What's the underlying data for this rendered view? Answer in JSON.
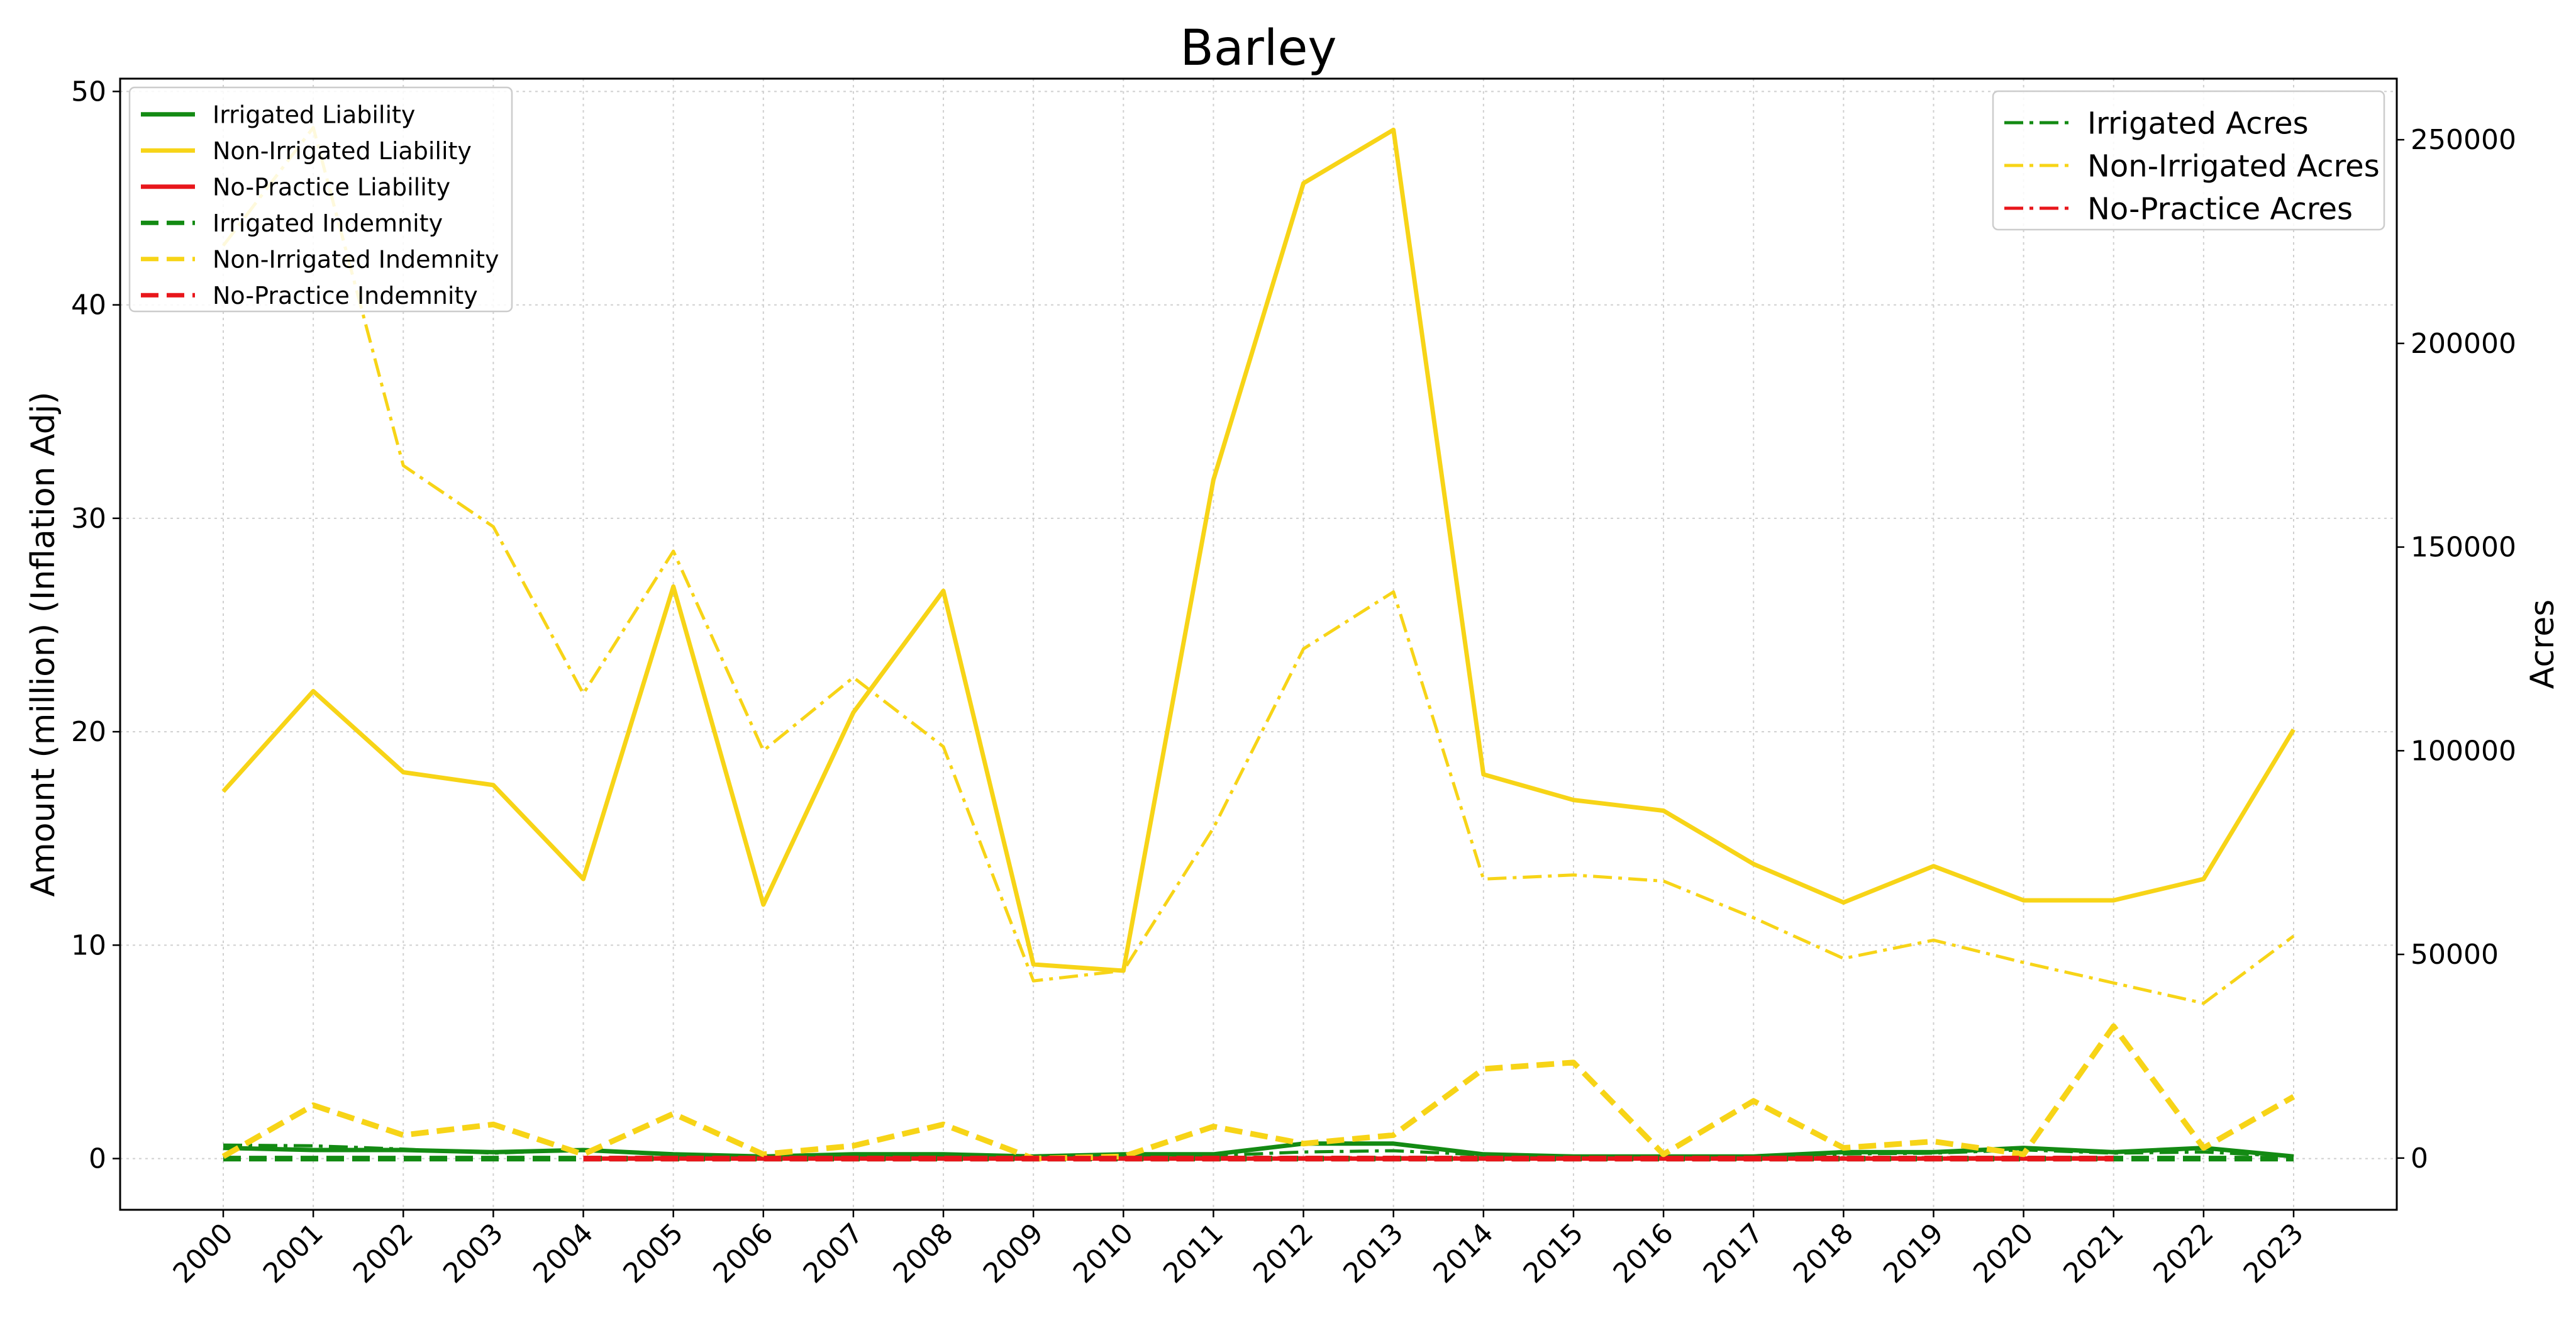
{
  "chart_data": {
    "type": "line",
    "title": "Barley",
    "ylabel_left": "Amount (million) (Inflation Adj)",
    "ylabel_right": "Acres",
    "x": [
      "2000",
      "2001",
      "2002",
      "2003",
      "2004",
      "2005",
      "2006",
      "2007",
      "2008",
      "2009",
      "2010",
      "2011",
      "2012",
      "2013",
      "2014",
      "2015",
      "2016",
      "2017",
      "2018",
      "2019",
      "2020",
      "2021",
      "2022",
      "2023"
    ],
    "ylim_left": [
      -2.4,
      50.6
    ],
    "ylim_right": [
      -12700,
      265000
    ],
    "yticks_left": [
      0,
      10,
      20,
      30,
      40,
      50
    ],
    "yticks_right": [
      0,
      50000,
      100000,
      150000,
      200000,
      250000
    ],
    "grid": true,
    "legend_left_position": "top-left",
    "legend_right_position": "top-right",
    "colors": {
      "irrigated": "#138a13",
      "non_irrigated": "#f7d417",
      "no_practice": "#e8161b"
    },
    "series_left": [
      {
        "name": "Irrigated Liability",
        "color": "#138a13",
        "dash": "solid",
        "values": [
          0.5,
          0.4,
          0.4,
          0.3,
          0.4,
          0.2,
          0.1,
          0.2,
          0.2,
          0.1,
          0.2,
          0.2,
          0.7,
          0.7,
          0.2,
          0.1,
          0.1,
          0.1,
          0.3,
          0.3,
          0.5,
          0.3,
          0.5,
          0.1
        ]
      },
      {
        "name": "Non-Irrigated Liability",
        "color": "#f7d417",
        "dash": "solid",
        "values": [
          17.2,
          21.9,
          18.1,
          17.5,
          13.1,
          26.8,
          11.9,
          20.9,
          26.6,
          9.1,
          8.8,
          31.8,
          45.7,
          48.2,
          18.0,
          16.8,
          16.3,
          13.8,
          12.0,
          13.7,
          12.1,
          12.1,
          13.1,
          20.1
        ]
      },
      {
        "name": "No-Practice Liability",
        "color": "#e8161b",
        "dash": "solid",
        "values": [
          null,
          null,
          null,
          null,
          0.0,
          0.0,
          0.0,
          0.0,
          0.0,
          0.0,
          0.0,
          0.0,
          0.0,
          0.0,
          0.0,
          0.0,
          0.0,
          0.0,
          0.0,
          0.0,
          0.0,
          0.0,
          null,
          null
        ]
      },
      {
        "name": "Irrigated Indemnity",
        "color": "#138a13",
        "dash": "dashed",
        "values": [
          0.0,
          0.0,
          0.0,
          0.0,
          0.0,
          0.0,
          0.0,
          0.0,
          0.0,
          0.0,
          0.0,
          0.0,
          0.0,
          0.0,
          0.0,
          0.0,
          0.0,
          0.0,
          0.0,
          0.0,
          0.0,
          0.0,
          0.0,
          0.0
        ]
      },
      {
        "name": "Non-Irrigated Indemnity",
        "color": "#f7d417",
        "dash": "dashed",
        "values": [
          0.1,
          2.5,
          1.1,
          1.6,
          0.2,
          2.1,
          0.2,
          0.6,
          1.6,
          0.0,
          0.1,
          1.5,
          0.7,
          1.1,
          4.2,
          4.5,
          0.2,
          2.7,
          0.5,
          0.8,
          0.2,
          6.2,
          0.5,
          2.9
        ]
      },
      {
        "name": "No-Practice Indemnity",
        "color": "#e8161b",
        "dash": "dashed",
        "values": [
          null,
          null,
          null,
          null,
          0.0,
          0.0,
          0.0,
          0.0,
          0.0,
          0.0,
          0.0,
          0.0,
          0.0,
          0.0,
          0.0,
          0.0,
          0.0,
          0.0,
          0.0,
          0.0,
          0.0,
          0.0,
          null,
          null
        ]
      }
    ],
    "series_right": [
      {
        "name": "Irrigated Acres",
        "color": "#138a13",
        "dash": "dashdot",
        "values": [
          3200,
          3000,
          2200,
          1200,
          2000,
          800,
          400,
          500,
          400,
          300,
          400,
          600,
          1500,
          1800,
          800,
          500,
          500,
          400,
          1000,
          1200,
          2000,
          1200,
          1500,
          400
        ]
      },
      {
        "name": "Non-Irrigated Acres",
        "color": "#f7d417",
        "dash": "dashdot",
        "values": [
          224000,
          253000,
          170000,
          155000,
          114000,
          149000,
          100000,
          118000,
          101000,
          43500,
          46000,
          81000,
          125000,
          139000,
          68500,
          69500,
          68000,
          59000,
          49000,
          53500,
          48000,
          43000,
          38000,
          54500
        ]
      },
      {
        "name": "No-Practice Acres",
        "color": "#e8161b",
        "dash": "dashdot",
        "values": [
          null,
          null,
          null,
          null,
          100,
          100,
          100,
          100,
          100,
          100,
          100,
          100,
          100,
          100,
          100,
          100,
          100,
          100,
          100,
          100,
          100,
          100,
          null,
          null
        ]
      }
    ]
  }
}
